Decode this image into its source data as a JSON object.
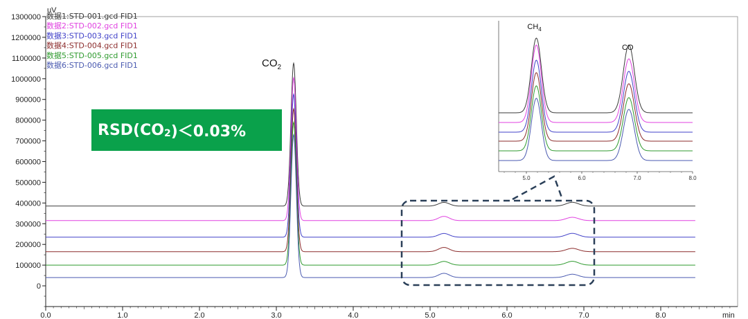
{
  "chart_data": {
    "type": "line",
    "xlabel": "min",
    "ylabel": "uV",
    "xlim": [
      0.0,
      9.0
    ],
    "ylim": [
      -100000,
      1300000
    ],
    "x_ticks": [
      0.0,
      1.0,
      2.0,
      3.0,
      4.0,
      5.0,
      6.0,
      7.0,
      8.0
    ],
    "x_tick_labels": [
      "0.0",
      "1.0",
      "2.0",
      "3.0",
      "4.0",
      "5.0",
      "6.0",
      "7.0",
      "8.0"
    ],
    "y_ticks": [
      0,
      100000,
      200000,
      300000,
      400000,
      500000,
      600000,
      700000,
      800000,
      900000,
      1000000,
      1100000,
      1200000,
      1300000
    ],
    "y_tick_labels": [
      "0",
      "100000",
      "200000",
      "300000",
      "400000",
      "500000",
      "600000",
      "700000",
      "800000",
      "900000",
      "1000000",
      "1100000",
      "1200000",
      "1300000"
    ],
    "legend_position": "top-left",
    "series": [
      {
        "name": "数据1:STD-001.gcd FID1",
        "color": "#3a3a3a",
        "baseline": 385000,
        "co2_apex": 1075000
      },
      {
        "name": "数据2:STD-002.gcd FID1",
        "color": "#e040e0",
        "baseline": 315000,
        "co2_apex": 1005000
      },
      {
        "name": "数据3:STD-003.gcd FID1",
        "color": "#4040c8",
        "baseline": 235000,
        "co2_apex": 925000
      },
      {
        "name": "数据4:STD-004.gcd FID1",
        "color": "#8b2b2b",
        "baseline": 165000,
        "co2_apex": 855000
      },
      {
        "name": "数据5:STD-005.gcd FID1",
        "color": "#2e9a2e",
        "baseline": 100000,
        "co2_apex": 790000
      },
      {
        "name": "数据6:STD-006.gcd FID1",
        "color": "#4a5ab0",
        "baseline": 40000,
        "co2_apex": 730000
      }
    ],
    "peaks": [
      {
        "name": "CO",
        "sub": "2",
        "x": 3.22,
        "height": 690000
      },
      {
        "name": "CH",
        "sub": "4",
        "x": 5.18,
        "height": 20000
      },
      {
        "name": "CO",
        "sub": "",
        "x": 6.85,
        "height": 18000
      }
    ],
    "annotation": {
      "text_pre": "RSD(CO",
      "text_sub": "2",
      "text_post": ")＜0.03%"
    },
    "inset": {
      "xlim": [
        4.5,
        8.0
      ],
      "x_ticks": [
        5.0,
        6.0,
        7.0,
        8.0
      ],
      "x_tick_labels": [
        "5.0",
        "6.0",
        "7.0",
        "8.0"
      ],
      "peaks": [
        {
          "label": "CH",
          "sub": "4",
          "x": 5.18
        },
        {
          "label": "CO",
          "sub": "",
          "x": 6.85
        }
      ]
    }
  },
  "colors": {
    "annotation_bg": "#0aa14b",
    "dash": "#2a3f58"
  }
}
